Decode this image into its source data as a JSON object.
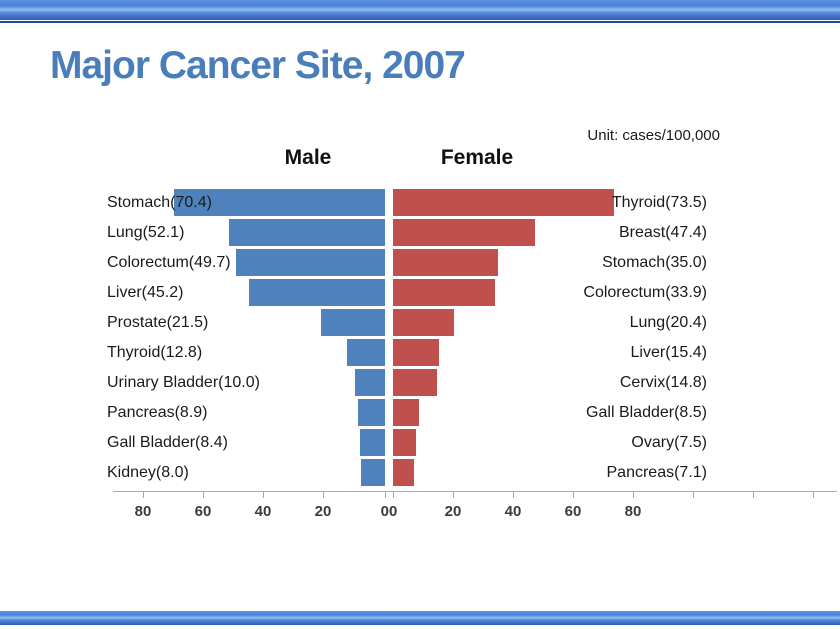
{
  "slide": {
    "title": "Major Cancer Site, 2007",
    "unit_label": "Unit: cases/100,000"
  },
  "colors": {
    "male_bar": "#4f81bd",
    "female_bar": "#c0504d",
    "title_text": "#4a7ebb",
    "axis": "#a9a9a9"
  },
  "chart_data": {
    "type": "bar",
    "subtype": "population-pyramid",
    "title": "Major Cancer Site, 2007",
    "unit": "cases/100,000",
    "xlabel": "",
    "ylabel": "",
    "axis_ticks_display": [
      "80",
      "60",
      "40",
      "20",
      "00",
      "20",
      "40",
      "60",
      "80"
    ],
    "axis_max": 80,
    "grid": false,
    "legend_position": "top-as-headers",
    "series": [
      {
        "name": "Male",
        "color": "#4f81bd",
        "items": [
          {
            "site": "Stomach",
            "value": 70.4
          },
          {
            "site": "Lung",
            "value": 52.1
          },
          {
            "site": "Colorectum",
            "value": 49.7
          },
          {
            "site": "Liver",
            "value": 45.2
          },
          {
            "site": "Prostate",
            "value": 21.5
          },
          {
            "site": "Thyroid",
            "value": 12.8
          },
          {
            "site": "Urinary Bladder",
            "value": 10.0
          },
          {
            "site": "Pancreas",
            "value": 8.9
          },
          {
            "site": "Gall Bladder",
            "value": 8.4
          },
          {
            "site": "Kidney",
            "value": 8.0
          }
        ]
      },
      {
        "name": "Female",
        "color": "#c0504d",
        "items": [
          {
            "site": "Thyroid",
            "value": 73.5
          },
          {
            "site": "Breast",
            "value": 47.4
          },
          {
            "site": "Stomach",
            "value": 35.0
          },
          {
            "site": "Colorectum",
            "value": 33.9
          },
          {
            "site": "Lung",
            "value": 20.4
          },
          {
            "site": "Liver",
            "value": 15.4
          },
          {
            "site": "Cervix",
            "value": 14.8
          },
          {
            "site": "Gall Bladder",
            "value": 8.5
          },
          {
            "site": "Ovary",
            "value": 7.5
          },
          {
            "site": "Pancreas",
            "value": 7.1
          }
        ]
      }
    ]
  }
}
